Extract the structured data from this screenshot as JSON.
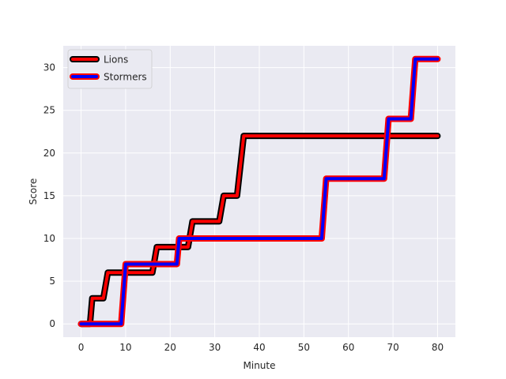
{
  "chart_data": {
    "type": "line",
    "title": "",
    "xlabel": "Minute",
    "ylabel": "Score",
    "xlim": [
      -4,
      84
    ],
    "ylim": [
      -1.55,
      32.55
    ],
    "xticks": [
      0,
      10,
      20,
      30,
      40,
      50,
      60,
      70,
      80
    ],
    "yticks": [
      0,
      5,
      10,
      15,
      20,
      25,
      30
    ],
    "grid": true,
    "background": "#eaeaf2",
    "legend_position": "top-left",
    "series": [
      {
        "name": "Lions",
        "line_color": "#ff0000",
        "outline_color": "#000000",
        "x": [
          0,
          2,
          2.5,
          4,
          5,
          6,
          16,
          17,
          21,
          22.5,
          24,
          25,
          30,
          31,
          32,
          34,
          35,
          36.5,
          80
        ],
        "y": [
          0,
          0,
          3,
          3,
          3,
          6,
          6,
          9,
          9,
          9,
          9,
          12,
          12,
          12,
          15,
          15,
          15,
          22,
          22
        ]
      },
      {
        "name": "Stormers",
        "line_color": "#0000ff",
        "outline_color": "#ff0000",
        "x": [
          0,
          9,
          10,
          21.5,
          22,
          54,
          55,
          68,
          69,
          74,
          75,
          80
        ],
        "y": [
          0,
          0,
          7,
          7,
          10,
          10,
          17,
          17,
          24,
          24,
          31,
          31
        ]
      }
    ]
  }
}
